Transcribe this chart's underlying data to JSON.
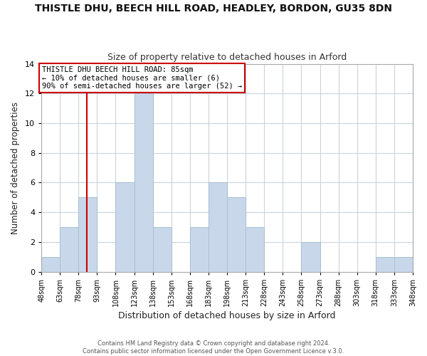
{
  "title": "THISTLE DHU, BEECH HILL ROAD, HEADLEY, BORDON, GU35 8DN",
  "subtitle": "Size of property relative to detached houses in Arford",
  "xlabel": "Distribution of detached houses by size in Arford",
  "ylabel": "Number of detached properties",
  "bar_color": "#c8d8ea",
  "bar_edge_color": "#a8bfcf",
  "vline_color": "#cc0000",
  "vline_x": 85,
  "bin_edges": [
    48,
    63,
    78,
    93,
    108,
    123,
    138,
    153,
    168,
    183,
    198,
    213,
    228,
    243,
    258,
    273,
    288,
    303,
    318,
    333,
    348
  ],
  "bin_labels": [
    "48sqm",
    "63sqm",
    "78sqm",
    "93sqm",
    "108sqm",
    "123sqm",
    "138sqm",
    "153sqm",
    "168sqm",
    "183sqm",
    "198sqm",
    "213sqm",
    "228sqm",
    "243sqm",
    "258sqm",
    "273sqm",
    "288sqm",
    "303sqm",
    "318sqm",
    "333sqm",
    "348sqm"
  ],
  "counts": [
    1,
    3,
    5,
    0,
    6,
    12,
    3,
    0,
    3,
    6,
    5,
    3,
    0,
    0,
    2,
    0,
    0,
    0,
    1,
    1
  ],
  "ylim": [
    0,
    14
  ],
  "yticks": [
    0,
    2,
    4,
    6,
    8,
    10,
    12,
    14
  ],
  "annotation_title": "THISTLE DHU BEECH HILL ROAD: 85sqm",
  "annotation_line2": "← 10% of detached houses are smaller (6)",
  "annotation_line3": "90% of semi-detached houses are larger (52) →",
  "footnote1": "Contains HM Land Registry data © Crown copyright and database right 2024.",
  "footnote2": "Contains public sector information licensed under the Open Government Licence v.3.0.",
  "background_color": "#ffffff",
  "plot_background": "#ffffff",
  "grid_color": "#c8d4dc"
}
